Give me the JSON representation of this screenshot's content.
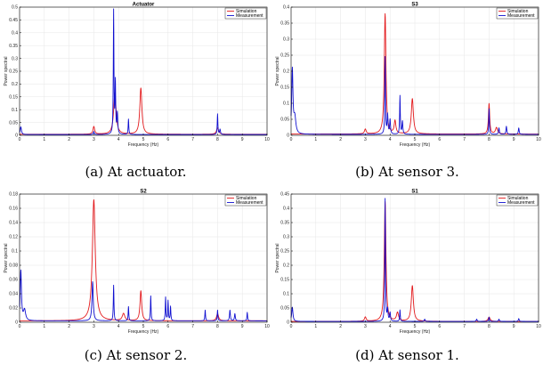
{
  "colors": {
    "simulation": "#e3191c",
    "measurement": "#1010d0",
    "grid": "#e6e6e6"
  },
  "chart_data": [
    {
      "type": "line",
      "title": "Actuator",
      "caption": "(a) At actuator.",
      "xlabel": "Frequency (Hz)",
      "ylabel": "Power spectral",
      "xlim": [
        0,
        10
      ],
      "ylim": [
        0,
        0.5
      ],
      "xticks": [
        0,
        1,
        2,
        3,
        4,
        5,
        6,
        7,
        8,
        9,
        10
      ],
      "yticks": [
        0,
        0.05,
        0.1,
        0.15,
        0.2,
        0.25,
        0.3,
        0.35,
        0.4,
        0.45,
        0.5
      ],
      "legend": "top-right",
      "series": [
        {
          "name": "Simulation",
          "baseline": 0.004,
          "peaks": [
            [
              3.0,
              0.03,
              0.04
            ],
            [
              3.85,
              0.16,
              0.06
            ],
            [
              4.9,
              0.18,
              0.05
            ],
            [
              8.0,
              0.025,
              0.05
            ]
          ]
        },
        {
          "name": "Measurement",
          "baseline": 0.003,
          "peaks": [
            [
              0.05,
              0.03,
              0.03
            ],
            [
              3.0,
              0.012,
              0.02
            ],
            [
              3.8,
              0.48,
              0.015
            ],
            [
              3.87,
              0.2,
              0.015
            ],
            [
              3.95,
              0.08,
              0.02
            ],
            [
              4.4,
              0.06,
              0.015
            ],
            [
              8.0,
              0.08,
              0.015
            ],
            [
              8.1,
              0.02,
              0.02
            ]
          ]
        }
      ]
    },
    {
      "type": "line",
      "title": "S3",
      "caption": "(b) At sensor 3.",
      "xlabel": "Frequency (Hz)",
      "ylabel": "Power spectral",
      "xlim": [
        0,
        10
      ],
      "ylim": [
        0,
        0.4
      ],
      "xticks": [
        0,
        1,
        2,
        3,
        4,
        5,
        6,
        7,
        8,
        9,
        10
      ],
      "yticks": [
        0,
        0.05,
        0.1,
        0.15,
        0.2,
        0.25,
        0.3,
        0.35,
        0.4
      ],
      "legend": "top-right",
      "series": [
        {
          "name": "Simulation",
          "baseline": 0.004,
          "peaks": [
            [
              3.0,
              0.015,
              0.04
            ],
            [
              3.8,
              0.375,
              0.04
            ],
            [
              4.2,
              0.04,
              0.04
            ],
            [
              4.9,
              0.11,
              0.05
            ],
            [
              8.0,
              0.095,
              0.03
            ],
            [
              8.3,
              0.02,
              0.05
            ]
          ]
        },
        {
          "name": "Measurement",
          "baseline": 0.003,
          "peaks": [
            [
              0.05,
              0.2,
              0.03
            ],
            [
              0.15,
              0.05,
              0.05
            ],
            [
              3.8,
              0.24,
              0.015
            ],
            [
              3.9,
              0.06,
              0.02
            ],
            [
              4.0,
              0.045,
              0.02
            ],
            [
              4.4,
              0.12,
              0.015
            ],
            [
              4.5,
              0.04,
              0.02
            ],
            [
              8.0,
              0.08,
              0.015
            ],
            [
              8.4,
              0.02,
              0.02
            ],
            [
              8.7,
              0.025,
              0.02
            ],
            [
              9.2,
              0.02,
              0.02
            ]
          ]
        }
      ]
    },
    {
      "type": "line",
      "title": "S2",
      "caption": "(c) At sensor 2.",
      "xlabel": "Frequency (Hz)",
      "ylabel": "Power spectral",
      "xlim": [
        0,
        10
      ],
      "ylim": [
        0,
        0.18
      ],
      "xticks": [
        0,
        1,
        2,
        3,
        4,
        5,
        6,
        7,
        8,
        9,
        10
      ],
      "yticks": [
        0,
        0.02,
        0.04,
        0.06,
        0.08,
        0.1,
        0.12,
        0.14,
        0.16,
        0.18
      ],
      "legend": "top-right",
      "series": [
        {
          "name": "Simulation",
          "baseline": 0.002,
          "peaks": [
            [
              3.0,
              0.17,
              0.07
            ],
            [
              4.2,
              0.01,
              0.06
            ],
            [
              4.9,
              0.042,
              0.04
            ],
            [
              8.0,
              0.01,
              0.05
            ]
          ]
        },
        {
          "name": "Measurement",
          "baseline": 0.002,
          "peaks": [
            [
              0.05,
              0.07,
              0.03
            ],
            [
              0.2,
              0.015,
              0.05
            ],
            [
              2.95,
              0.055,
              0.03
            ],
            [
              3.8,
              0.05,
              0.015
            ],
            [
              4.4,
              0.02,
              0.015
            ],
            [
              5.3,
              0.035,
              0.015
            ],
            [
              5.9,
              0.033,
              0.015
            ],
            [
              6.0,
              0.028,
              0.015
            ],
            [
              6.1,
              0.02,
              0.015
            ],
            [
              7.5,
              0.015,
              0.015
            ],
            [
              8.0,
              0.015,
              0.015
            ],
            [
              8.5,
              0.015,
              0.02
            ],
            [
              8.7,
              0.01,
              0.02
            ],
            [
              9.2,
              0.012,
              0.015
            ]
          ]
        }
      ]
    },
    {
      "type": "line",
      "title": "S1",
      "caption": "(d) At sensor 1.",
      "xlabel": "Frequency (Hz)",
      "ylabel": "Power spectral",
      "xlim": [
        0,
        10
      ],
      "ylim": [
        0,
        0.45
      ],
      "xticks": [
        0,
        1,
        2,
        3,
        4,
        5,
        6,
        7,
        8,
        9,
        10
      ],
      "yticks": [
        0,
        0.05,
        0.1,
        0.15,
        0.2,
        0.25,
        0.3,
        0.35,
        0.4,
        0.45
      ],
      "legend": "top-right",
      "series": [
        {
          "name": "Simulation",
          "baseline": 0.003,
          "peaks": [
            [
              3.0,
              0.015,
              0.04
            ],
            [
              3.8,
              0.42,
              0.04
            ],
            [
              4.3,
              0.03,
              0.05
            ],
            [
              4.9,
              0.125,
              0.05
            ],
            [
              8.0,
              0.015,
              0.05
            ]
          ]
        },
        {
          "name": "Measurement",
          "baseline": 0.003,
          "peaks": [
            [
              0.05,
              0.05,
              0.03
            ],
            [
              3.8,
              0.43,
              0.015
            ],
            [
              3.9,
              0.04,
              0.02
            ],
            [
              4.0,
              0.03,
              0.02
            ],
            [
              4.4,
              0.04,
              0.015
            ],
            [
              5.4,
              0.008,
              0.02
            ],
            [
              7.5,
              0.008,
              0.02
            ],
            [
              8.0,
              0.015,
              0.015
            ],
            [
              8.4,
              0.008,
              0.02
            ],
            [
              9.2,
              0.01,
              0.02
            ]
          ]
        }
      ]
    }
  ]
}
